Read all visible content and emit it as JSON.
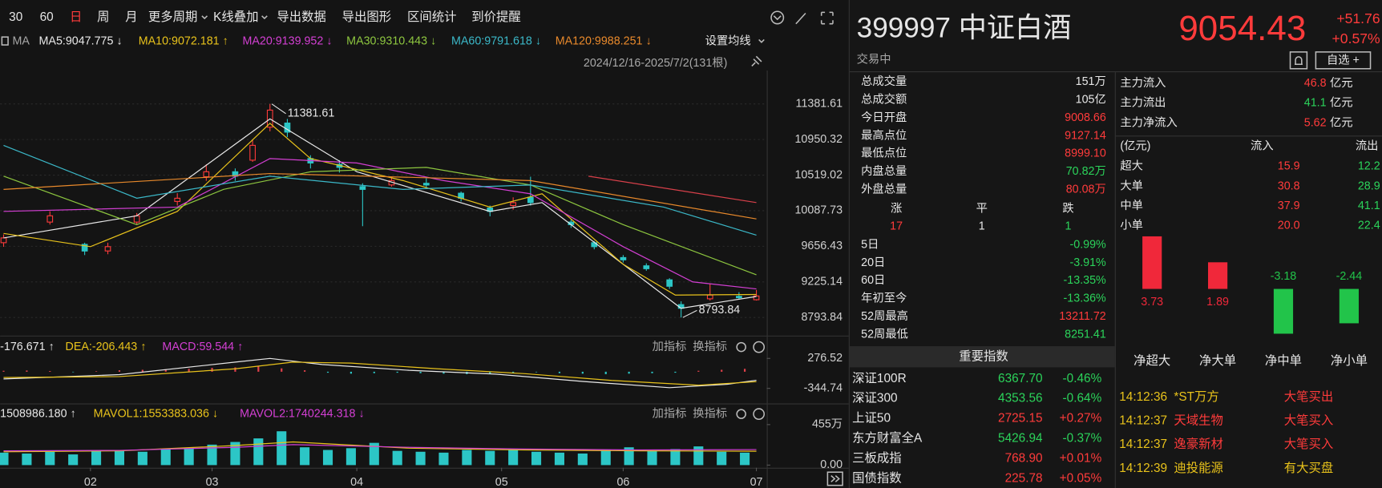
{
  "toolbar": {
    "items": [
      "30",
      "60",
      "日",
      "周",
      "月",
      "更多周期",
      "K线叠加",
      "导出数据",
      "导出图形",
      "区间统计",
      "到价提醒"
    ]
  },
  "ma_legend": {
    "label": "MA",
    "settings": "设置均线",
    "range": "2024/12/16-2025/7/2(131根)"
  },
  "macd_panel": {
    "buttons": [
      "加指标",
      "换指标"
    ]
  },
  "volume_panel": {
    "buttons": [
      "加指标",
      "换指标"
    ]
  },
  "chart_data": [
    {
      "type": "candlestick",
      "x": [
        0,
        8,
        14,
        18,
        23,
        30,
        35,
        40,
        43,
        46,
        49,
        53,
        58,
        62,
        67,
        73,
        79,
        84,
        88,
        91,
        98,
        102,
        107,
        111,
        115,
        117,
        122,
        127,
        130
      ],
      "open": [
        9700,
        9950,
        9680,
        9600,
        9950,
        10200,
        10500,
        10560,
        10700,
        11100,
        11150,
        10720,
        10650,
        10380,
        10400,
        10420,
        10300,
        10120,
        10150,
        10250,
        9950,
        9700,
        9520,
        9420,
        9250,
        8950,
        9020,
        9050,
        9008.66
      ],
      "high": [
        9800,
        10080,
        9700,
        9700,
        10060,
        10300,
        10650,
        10600,
        10950,
        11381.61,
        11200,
        10760,
        10700,
        10420,
        10500,
        10480,
        10320,
        10150,
        10250,
        10500,
        9980,
        9720,
        9550,
        9450,
        9270,
        8990,
        9200,
        9100,
        9127.14
      ],
      "low": [
        9650,
        9920,
        9550,
        9560,
        9920,
        10150,
        10450,
        10450,
        10680,
        11050,
        10980,
        10600,
        10550,
        9900,
        10380,
        10350,
        10200,
        10020,
        10100,
        10150,
        9880,
        9620,
        9460,
        9360,
        9140,
        8793.84,
        9000,
        9010,
        8999.1
      ],
      "close": [
        9758,
        10026,
        9599,
        9652,
        10026,
        10239,
        10560,
        10506,
        10880,
        11307,
        11040,
        10666,
        10613,
        10346,
        10453,
        10399,
        10239,
        10079,
        10186,
        10186,
        9919,
        9652,
        9492,
        9385,
        9172,
        8905,
        9065,
        9033,
        9054.43
      ],
      "up_color": "#ff3b3b",
      "down_color": "#2cc6c6",
      "xlim": [
        -0.6,
        131.8
      ],
      "ylim": [
        8606,
        11734
      ],
      "yticks": [
        11381.61,
        10950.32,
        10519.02,
        10087.73,
        9656.43,
        9225.14,
        8793.84
      ],
      "xticks": [
        {
          "value": 15,
          "label": "02"
        },
        {
          "value": 36,
          "label": "03"
        },
        {
          "value": 61,
          "label": "04"
        },
        {
          "value": 86,
          "label": "05"
        },
        {
          "value": 107,
          "label": "06"
        },
        {
          "value": 130,
          "label": "07"
        }
      ],
      "grid": true,
      "annotations": [
        {
          "x": 46,
          "y": 11381.61
        },
        {
          "x": 117,
          "y": 8793.84
        }
      ],
      "lines": [
        {
          "name": "MA5:9047.775 ↓",
          "color": "#e8e8e8",
          "x": [
            0,
            23,
            46,
            61,
            84,
            93,
            107,
            117,
            130
          ],
          "values": [
            9758,
            10026,
            11200,
            10560,
            10079,
            10186,
            9439,
            8905,
            9047.775
          ]
        },
        {
          "name": "MA10:9072.181 ↑",
          "color": "#e8c21b",
          "x": [
            0,
            15,
            30,
            46,
            53,
            69,
            84,
            93,
            107,
            116,
            130
          ],
          "values": [
            9812,
            9652,
            10079,
            11147,
            10720,
            10453,
            10132,
            10293,
            9439,
            9065,
            9072.181
          ]
        },
        {
          "name": "MA20:9139.952 ↓",
          "color": "#d33fd3",
          "x": [
            0,
            30,
            46,
            61,
            76,
            91,
            107,
            119,
            130
          ],
          "values": [
            10079,
            10132,
            10720,
            10666,
            10453,
            10293,
            9652,
            9225,
            9139.952
          ]
        },
        {
          "name": "MA30:9310.443 ↓",
          "color": "#8dc63f",
          "x": [
            0,
            23,
            38,
            53,
            73,
            91,
            107,
            130
          ],
          "values": [
            10506,
            9919,
            10346,
            10560,
            10613,
            10399,
            9919,
            9310.443
          ]
        },
        {
          "name": "MA60:9791.618 ↓",
          "color": "#3bb8c8",
          "x": [
            0,
            23,
            46,
            69,
            91,
            114,
            130
          ],
          "values": [
            10880,
            10239,
            10506,
            10346,
            10399,
            10132,
            9791.618
          ]
        },
        {
          "name": "MA120:9988.251 ↓",
          "color": "#e8892b",
          "x": [
            0,
            46,
            91,
            130
          ],
          "values": [
            10346,
            10538,
            10453,
            9988.251
          ]
        },
        {
          "color": "#d8404a",
          "x": [
            101,
            130
          ],
          "values": [
            10506,
            10186
          ]
        }
      ]
    },
    {
      "type": "bar",
      "name": "MACD:59.544 ↑",
      "x": [
        0,
        4,
        8,
        12,
        16,
        20,
        24,
        28,
        32,
        36,
        40,
        44,
        48,
        52,
        56,
        60,
        64,
        68,
        72,
        76,
        80,
        84,
        88,
        92,
        96,
        100,
        104,
        108,
        112,
        116,
        120,
        124,
        128
      ],
      "values": [
        20,
        25,
        15,
        -10,
        10,
        30,
        40,
        50,
        60,
        80,
        90,
        110,
        70,
        30,
        -20,
        -40,
        -30,
        -20,
        -30,
        -40,
        -50,
        -40,
        -20,
        -10,
        -30,
        -40,
        -50,
        -40,
        -30,
        -20,
        20,
        40,
        60
      ],
      "up_color": "#e0404a",
      "down_color": "#2cc6c6",
      "xlim": [
        -0.6,
        131.8
      ],
      "ylim": [
        -566,
        402
      ],
      "yticks": [
        276.52,
        -344.74
      ],
      "grid": false,
      "lines": [
        {
          "name": "-176.671 ↑",
          "color": "#e8e8e8",
          "x": [
            0,
            20,
            40,
            46,
            55,
            70,
            85,
            100,
            115,
            125,
            130
          ],
          "values": [
            -150,
            -60,
            200,
            276,
            150,
            30,
            -50,
            -200,
            -330,
            -260,
            -176.671
          ]
        },
        {
          "name": "DEA:-206.443 ↑",
          "color": "#e8c21b",
          "x": [
            0,
            20,
            40,
            50,
            60,
            75,
            90,
            105,
            120,
            130
          ],
          "values": [
            -120,
            -100,
            60,
            200,
            180,
            60,
            -40,
            -180,
            -280,
            -206.443
          ]
        }
      ]
    },
    {
      "type": "bar",
      "name": "1508986.180 ↑",
      "x": [
        0,
        4,
        8,
        12,
        16,
        20,
        24,
        28,
        32,
        36,
        40,
        44,
        48,
        52,
        56,
        60,
        64,
        68,
        72,
        76,
        80,
        84,
        88,
        92,
        96,
        100,
        104,
        108,
        112,
        116,
        120,
        124,
        128
      ],
      "values": [
        140,
        130,
        150,
        120,
        160,
        170,
        150,
        180,
        190,
        230,
        260,
        300,
        380,
        200,
        170,
        190,
        250,
        160,
        150,
        140,
        170,
        160,
        180,
        150,
        140,
        130,
        170,
        200,
        160,
        180,
        210,
        150,
        140
      ],
      "color": "#2cc6c6",
      "xlim": [
        -0.6,
        131.8
      ],
      "ylim": [
        0,
        574
      ],
      "yticks": [
        {
          "value": 455,
          "label": "455万"
        },
        {
          "value": 0,
          "label": "0.00"
        }
      ],
      "grid": false,
      "lines": [
        {
          "name": "MAVOL1:1553383.036 ↓",
          "color": "#e8c21b",
          "x": [
            0,
            20,
            40,
            50,
            70,
            90,
            110,
            130
          ],
          "values": [
            150,
            160,
            220,
            260,
            190,
            170,
            160,
            155.34
          ]
        },
        {
          "name": "MAVOL2:1740244.318 ↓",
          "color": "#d33fd3",
          "x": [
            0,
            20,
            40,
            50,
            70,
            90,
            110,
            130
          ],
          "values": [
            160,
            165,
            200,
            230,
            200,
            180,
            170,
            174.02
          ]
        }
      ]
    },
    {
      "type": "bar",
      "categories": [
        "净超大",
        "净大单",
        "净中单",
        "净小单"
      ],
      "values": [
        3.73,
        1.89,
        -3.18,
        -2.44
      ],
      "up_color": "#f0283a",
      "down_color": "#22c44a",
      "ylim": [
        -4.19,
        3.875
      ]
    }
  ],
  "quote": {
    "code_name": "399997 中证白酒",
    "price": "9054.43",
    "change": "+51.76",
    "change_pct": "+0.57%",
    "status": "交易中",
    "watch": "自选 +"
  },
  "stats": {
    "rows": [
      [
        "总成交量",
        "151万"
      ],
      [
        "总成交额",
        "105亿"
      ],
      [
        "今日开盘",
        "9008.66"
      ],
      [
        "最高点位",
        "9127.14"
      ],
      [
        "最低点位",
        "8999.10"
      ],
      [
        "内盘总量",
        "70.82万"
      ],
      [
        "外盘总量",
        "80.08万"
      ]
    ],
    "breadth": {
      "labels": [
        "涨",
        "平",
        "跌"
      ],
      "values": [
        "17",
        "1",
        "1"
      ]
    },
    "returns": [
      [
        "5日",
        "-0.99%"
      ],
      [
        "20日",
        "-3.91%"
      ],
      [
        "60日",
        "-13.35%"
      ],
      [
        "年初至今",
        "-13.36%"
      ],
      [
        "52周最高",
        "13211.72"
      ],
      [
        "52周最低",
        "8251.41"
      ]
    ]
  },
  "fund_flow": {
    "summary": [
      [
        "主力流入",
        "46.8",
        "亿元"
      ],
      [
        "主力流出",
        "41.1",
        "亿元"
      ],
      [
        "主力净流入",
        "5.62",
        "亿元"
      ]
    ],
    "header": [
      "(亿元)",
      "流入",
      "流出"
    ],
    "rows": [
      [
        "超大",
        "15.9",
        "12.2"
      ],
      [
        "大单",
        "30.8",
        "28.9"
      ],
      [
        "中单",
        "37.9",
        "41.1"
      ],
      [
        "小单",
        "20.0",
        "22.4"
      ]
    ]
  },
  "indices": {
    "title": "重要指数",
    "rows": [
      [
        "深证100R",
        "6367.70",
        "-0.46%"
      ],
      [
        "深证300",
        "4353.56",
        "-0.64%"
      ],
      [
        "上证50",
        "2725.15",
        "+0.27%"
      ],
      [
        "东方财富全A",
        "5426.94",
        "-0.37%"
      ],
      [
        "三板成指",
        "768.90",
        "+0.01%"
      ],
      [
        "国债指数",
        "225.78",
        "+0.05%"
      ]
    ]
  },
  "ticker": [
    [
      "14:12:36",
      "*ST万方",
      "大笔买出"
    ],
    [
      "14:12:37",
      "天域生物",
      "大笔买入"
    ],
    [
      "14:12:37",
      "逸豪新材",
      "大笔买入"
    ],
    [
      "14:12:39",
      "迪投能源",
      "有大买盘"
    ]
  ]
}
